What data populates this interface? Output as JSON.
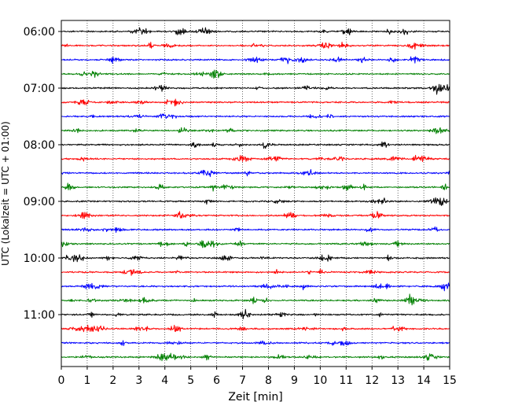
{
  "chart_data": {
    "type": "line",
    "subtype": "helicorder",
    "title": "",
    "xlabel": "Zeit  [min]",
    "ylabel": "UTC (Lokalzeit = UTC + 01:00)",
    "xlim": [
      0,
      15
    ],
    "x_ticks": [
      0,
      1,
      2,
      3,
      4,
      5,
      6,
      7,
      8,
      9,
      10,
      11,
      12,
      13,
      14,
      15
    ],
    "y_tick_labels": [
      "06:00",
      "07:00",
      "08:00",
      "09:00",
      "10:00",
      "11:00"
    ],
    "line_start_times": [
      "06:00",
      "06:15",
      "06:30",
      "06:45",
      "07:00",
      "07:15",
      "07:30",
      "07:45",
      "08:00",
      "08:15",
      "08:30",
      "08:45",
      "09:00",
      "09:15",
      "09:30",
      "09:45",
      "10:00",
      "10:15",
      "10:30",
      "10:45",
      "11:00",
      "11:15",
      "11:30",
      "11:45"
    ],
    "line_duration_min": 15,
    "color_cycle": [
      "#000000",
      "#ff0000",
      "#0000ff",
      "#008000"
    ],
    "grid": {
      "x": true,
      "y": false,
      "style": "dotted"
    },
    "legend": "none"
  }
}
